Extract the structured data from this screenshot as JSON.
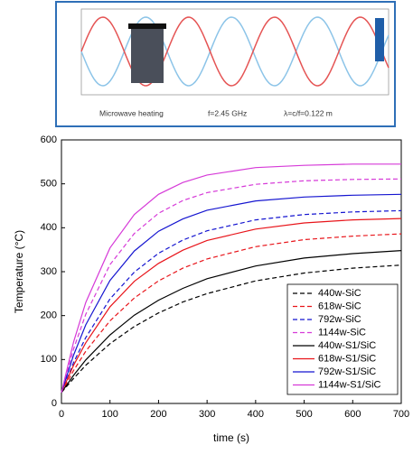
{
  "inset": {
    "caption": "Microwave heating",
    "frequency": "f=2.45 GHz",
    "wavelength": "λ=c/f=0.122 m"
  },
  "chart_data": {
    "type": "line",
    "x_label": "time (s)",
    "y_label": "Temperature (°C)",
    "x": [
      0,
      25,
      50,
      100,
      150,
      200,
      250,
      300,
      400,
      500,
      600,
      700
    ],
    "series": [
      {
        "name": "440w-SiC",
        "color": "#000000",
        "style": "dashed",
        "values": [
          25,
          57,
          87,
          136,
          175,
          206,
          231,
          250,
          279,
          297,
          308,
          315
        ]
      },
      {
        "name": "618w-SiC",
        "color": "#e8141a",
        "style": "dashed",
        "values": [
          25,
          75,
          119,
          188,
          240,
          279,
          308,
          329,
          357,
          373,
          381,
          386
        ]
      },
      {
        "name": "792w-SiC",
        "color": "#1515d0",
        "style": "dashed",
        "values": [
          25,
          93,
          150,
          238,
          299,
          342,
          372,
          393,
          418,
          430,
          436,
          439
        ]
      },
      {
        "name": "1144w-SiC",
        "color": "#d63ad8",
        "style": "dashed",
        "values": [
          25,
          124,
          203,
          316,
          387,
          433,
          462,
          480,
          499,
          507,
          510,
          511
        ]
      },
      {
        "name": "440w-S1/SiC",
        "color": "#000000",
        "style": "solid",
        "values": [
          25,
          64,
          99,
          156,
          201,
          235,
          262,
          284,
          313,
          331,
          341,
          348
        ]
      },
      {
        "name": "618w-S1/SiC",
        "color": "#e8141a",
        "style": "solid",
        "values": [
          25,
          87,
          138,
          220,
          278,
          319,
          349,
          371,
          397,
          411,
          418,
          421
        ]
      },
      {
        "name": "792w-S1/SiC",
        "color": "#1515d0",
        "style": "solid",
        "values": [
          25,
          110,
          179,
          280,
          347,
          392,
          420,
          440,
          461,
          470,
          474,
          476
        ]
      },
      {
        "name": "1144w-S1/SiC",
        "color": "#d63ad8",
        "style": "solid",
        "values": [
          25,
          140,
          230,
          354,
          430,
          476,
          503,
          520,
          537,
          542,
          545,
          545
        ]
      }
    ],
    "xlim": [
      0,
      700
    ],
    "xticks": [
      0,
      100,
      200,
      300,
      400,
      500,
      600,
      700
    ],
    "ylim": [
      0,
      600
    ],
    "yticks": [
      0,
      100,
      200,
      300,
      400,
      500,
      600
    ],
    "legend": "lower right",
    "grid": false
  }
}
